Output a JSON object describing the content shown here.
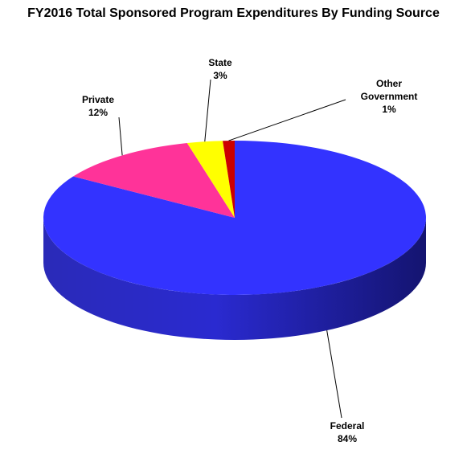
{
  "chart_data": {
    "type": "pie",
    "title": "FY2016 Total Sponsored Program Expenditures By Funding Source",
    "categories": [
      "Federal",
      "Private",
      "State",
      "Other Government"
    ],
    "values": [
      84,
      12,
      3,
      1
    ],
    "value_labels": [
      "84%",
      "12%",
      "3%",
      "1%"
    ],
    "colors": [
      "#3333ff",
      "#ff3399",
      "#ffff00",
      "#cc0000"
    ]
  }
}
